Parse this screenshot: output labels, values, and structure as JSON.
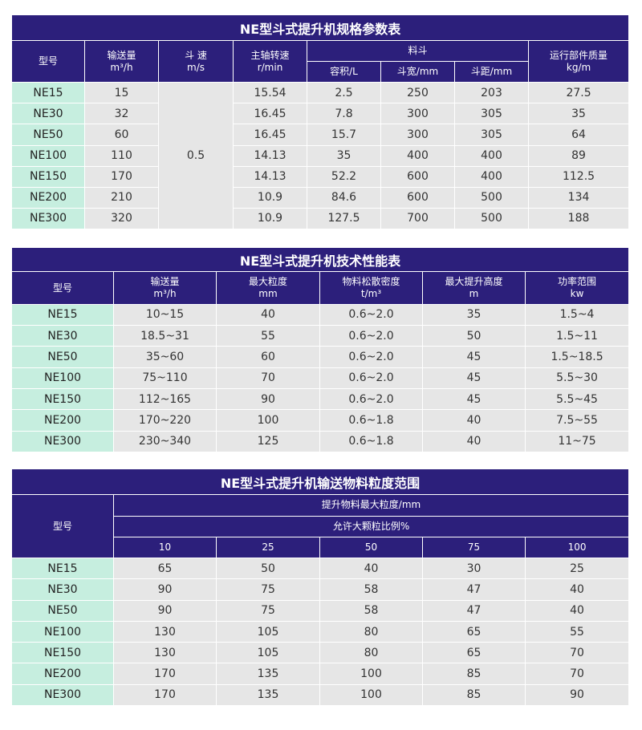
{
  "spec": {
    "title": "NE型斗式提升机规格参数表",
    "headers": {
      "model": "型号",
      "capacity": "输送量",
      "capacity_unit": "m³/h",
      "speed": "斗 速",
      "speed_unit": "m/s",
      "shaft": "主轴转速",
      "shaft_unit": "r/min",
      "bucket": "料斗",
      "volume": "容积/L",
      "width": "斗宽/mm",
      "pitch": "斗距/mm",
      "mass": "运行部件质量",
      "mass_unit": "kg/m"
    },
    "speed_value": "0.5",
    "rows": [
      {
        "model": "NE15",
        "capacity": "15",
        "shaft": "15.54",
        "volume": "2.5",
        "width": "250",
        "pitch": "203",
        "mass": "27.5"
      },
      {
        "model": "NE30",
        "capacity": "32",
        "shaft": "16.45",
        "volume": "7.8",
        "width": "300",
        "pitch": "305",
        "mass": "35"
      },
      {
        "model": "NE50",
        "capacity": "60",
        "shaft": "16.45",
        "volume": "15.7",
        "width": "300",
        "pitch": "305",
        "mass": "64"
      },
      {
        "model": "NE100",
        "capacity": "110",
        "shaft": "14.13",
        "volume": "35",
        "width": "400",
        "pitch": "400",
        "mass": "89"
      },
      {
        "model": "NE150",
        "capacity": "170",
        "shaft": "14.13",
        "volume": "52.2",
        "width": "600",
        "pitch": "400",
        "mass": "112.5"
      },
      {
        "model": "NE200",
        "capacity": "210",
        "shaft": "10.9",
        "volume": "84.6",
        "width": "600",
        "pitch": "500",
        "mass": "134"
      },
      {
        "model": "NE300",
        "capacity": "320",
        "shaft": "10.9",
        "volume": "127.5",
        "width": "700",
        "pitch": "500",
        "mass": "188"
      }
    ]
  },
  "perf": {
    "title": "NE型斗式提升机技术性能表",
    "headers": {
      "model": "型号",
      "capacity": "输送量",
      "capacity_unit": "m³/h",
      "size": "最大粒度",
      "size_unit": "mm",
      "density": "物料松散密度",
      "density_unit": "t/m³",
      "height": "最大提升高度",
      "height_unit": "m",
      "power": "功率范围",
      "power_unit": "kw"
    },
    "rows": [
      {
        "model": "NE15",
        "capacity": "10~15",
        "size": "40",
        "density": "0.6~2.0",
        "height": "35",
        "power": "1.5~4"
      },
      {
        "model": "NE30",
        "capacity": "18.5~31",
        "size": "55",
        "density": "0.6~2.0",
        "height": "50",
        "power": "1.5~11"
      },
      {
        "model": "NE50",
        "capacity": "35~60",
        "size": "60",
        "density": "0.6~2.0",
        "height": "45",
        "power": "1.5~18.5"
      },
      {
        "model": "NE100",
        "capacity": "75~110",
        "size": "70",
        "density": "0.6~2.0",
        "height": "45",
        "power": "5.5~30"
      },
      {
        "model": "NE150",
        "capacity": "112~165",
        "size": "90",
        "density": "0.6~2.0",
        "height": "45",
        "power": "5.5~45"
      },
      {
        "model": "NE200",
        "capacity": "170~220",
        "size": "100",
        "density": "0.6~1.8",
        "height": "40",
        "power": "7.5~55"
      },
      {
        "model": "NE300",
        "capacity": "230~340",
        "size": "125",
        "density": "0.6~1.8",
        "height": "40",
        "power": "11~75"
      }
    ]
  },
  "grain": {
    "title": "NE型斗式提升机输送物料粒度范围",
    "headers": {
      "model": "型号",
      "max_size": "提升物料最大粒度/mm",
      "ratio": "允许大颗粒比例%",
      "cols": [
        "10",
        "25",
        "50",
        "75",
        "100"
      ]
    },
    "rows": [
      {
        "model": "NE15",
        "v": [
          "65",
          "50",
          "40",
          "30",
          "25"
        ]
      },
      {
        "model": "NE30",
        "v": [
          "90",
          "75",
          "58",
          "47",
          "40"
        ]
      },
      {
        "model": "NE50",
        "v": [
          "90",
          "75",
          "58",
          "47",
          "40"
        ]
      },
      {
        "model": "NE100",
        "v": [
          "130",
          "105",
          "80",
          "65",
          "55"
        ]
      },
      {
        "model": "NE150",
        "v": [
          "130",
          "105",
          "80",
          "65",
          "70"
        ]
      },
      {
        "model": "NE200",
        "v": [
          "170",
          "135",
          "100",
          "85",
          "70"
        ]
      },
      {
        "model": "NE300",
        "v": [
          "170",
          "135",
          "100",
          "85",
          "90"
        ]
      }
    ]
  }
}
